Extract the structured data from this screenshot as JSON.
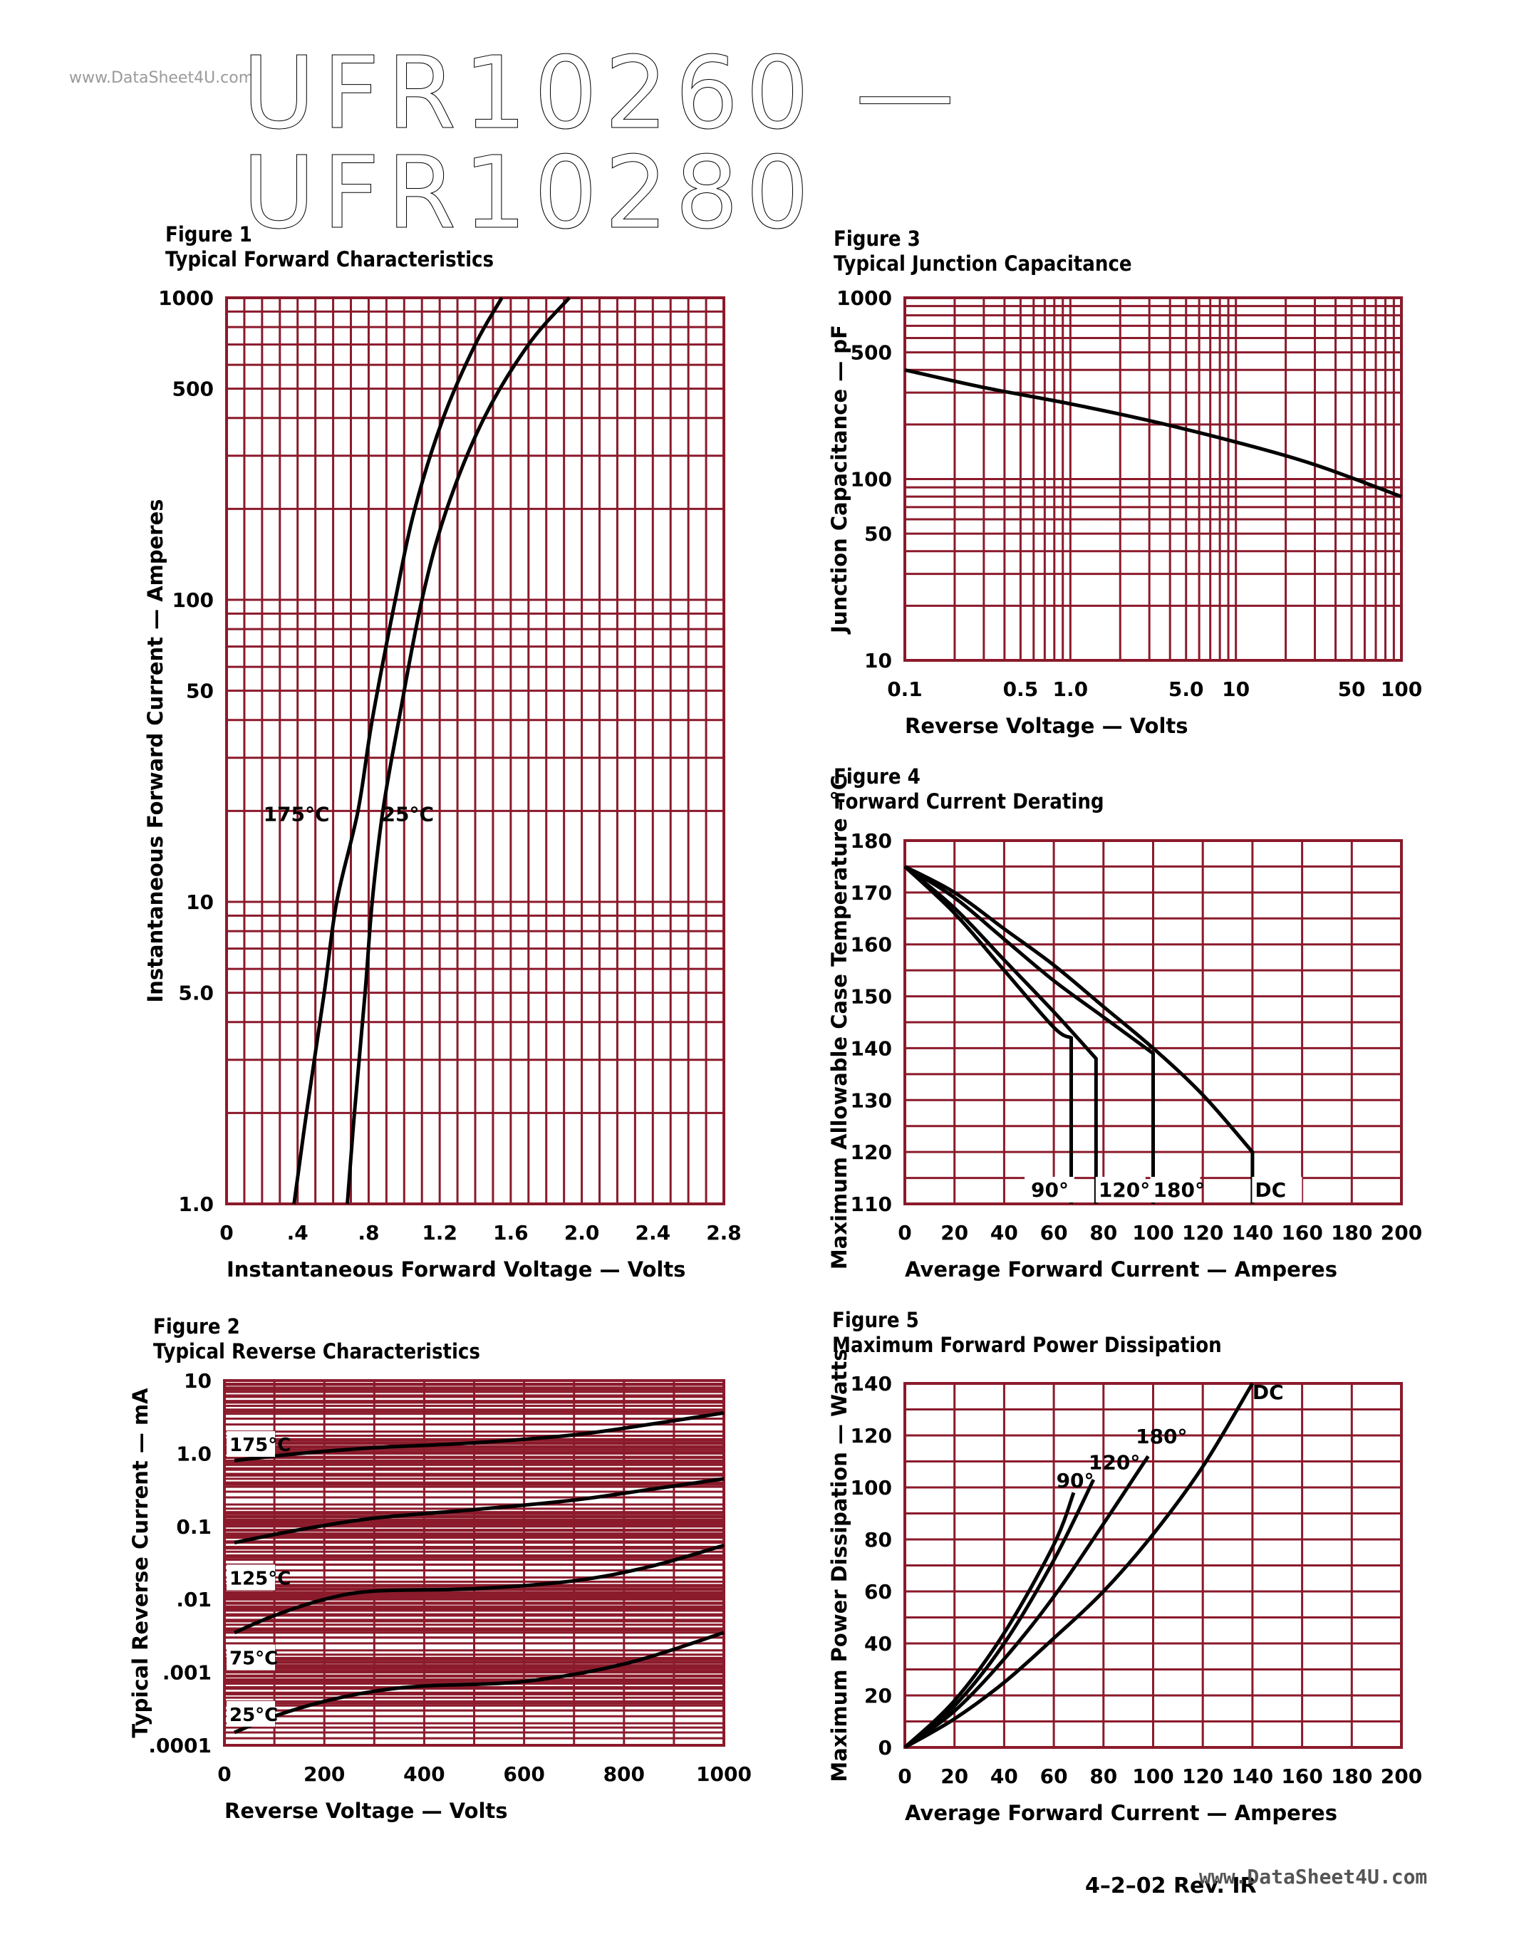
{
  "header": {
    "watermark": "www.DataSheet4U.com",
    "title": "UFR10260 — UFR10280"
  },
  "footer": {
    "date_rev": "4–2–02   Rev. IR",
    "watermark": "www.DataSheet4U.com"
  },
  "colors": {
    "grid": "#8b1a2b",
    "curve": "#000000"
  },
  "chart_data": [
    {
      "id": "fig1",
      "figure_label": "Figure 1",
      "title": "Typical Forward Characteristics",
      "type": "line",
      "xlabel": "Instantaneous Forward Voltage — Volts",
      "ylabel": "Instantaneous Forward Current — Amperes",
      "xlim": [
        0,
        2.8
      ],
      "ylim": [
        1,
        1000
      ],
      "yscale": "log",
      "x_ticks": [
        0,
        0.4,
        0.8,
        1.2,
        1.6,
        2.0,
        2.4,
        2.8
      ],
      "x_tick_labels": [
        "0",
        ".4",
        ".8",
        "1.2",
        "1.6",
        "2.0",
        "2.4",
        "2.8"
      ],
      "y_ticks": [
        1,
        5,
        10,
        50,
        100,
        500,
        1000
      ],
      "y_tick_labels": [
        "1.0",
        "5.0",
        "10",
        "50",
        "100",
        "500",
        "1000"
      ],
      "grid": true,
      "series": [
        {
          "name": "175°C",
          "points": [
            [
              0.38,
              1
            ],
            [
              0.45,
              2
            ],
            [
              0.55,
              5
            ],
            [
              0.62,
              10
            ],
            [
              0.74,
              20
            ],
            [
              0.82,
              40
            ],
            [
              0.95,
              100
            ],
            [
              1.06,
              200
            ],
            [
              1.22,
              400
            ],
            [
              1.4,
              700
            ],
            [
              1.55,
              1000
            ]
          ]
        },
        {
          "name": "25°C",
          "points": [
            [
              0.68,
              1
            ],
            [
              0.72,
              2
            ],
            [
              0.78,
              5
            ],
            [
              0.82,
              10
            ],
            [
              0.88,
              20
            ],
            [
              0.97,
              40
            ],
            [
              1.1,
              100
            ],
            [
              1.24,
              200
            ],
            [
              1.45,
              400
            ],
            [
              1.7,
              700
            ],
            [
              1.93,
              1000
            ]
          ]
        }
      ]
    },
    {
      "id": "fig2",
      "figure_label": "Figure 2",
      "title": "Typical Reverse Characteristics",
      "type": "line",
      "xlabel": "Reverse Voltage — Volts",
      "ylabel": "Typical Reverse Current — mA",
      "xlim": [
        0,
        1000
      ],
      "ylim": [
        0.0001,
        10
      ],
      "yscale": "log",
      "x_ticks": [
        0,
        200,
        400,
        600,
        800,
        1000
      ],
      "x_tick_labels": [
        "0",
        "200",
        "400",
        "600",
        "800",
        "1000"
      ],
      "y_ticks": [
        0.0001,
        0.001,
        0.01,
        0.1,
        1,
        10
      ],
      "y_tick_labels": [
        ".0001",
        ".001",
        ".01",
        "0.1",
        "1.0",
        "10"
      ],
      "grid": true,
      "series": [
        {
          "name": "175°C",
          "points": [
            [
              20,
              0.8
            ],
            [
              150,
              1.0
            ],
            [
              300,
              1.2
            ],
            [
              500,
              1.4
            ],
            [
              700,
              1.8
            ],
            [
              850,
              2.5
            ],
            [
              1000,
              3.6
            ]
          ]
        },
        {
          "name": "125°C",
          "points": [
            [
              20,
              0.06
            ],
            [
              150,
              0.09
            ],
            [
              300,
              0.13
            ],
            [
              500,
              0.17
            ],
            [
              700,
              0.23
            ],
            [
              850,
              0.32
            ],
            [
              1000,
              0.45
            ]
          ]
        },
        {
          "name": "75°C",
          "points": [
            [
              20,
              0.0035
            ],
            [
              100,
              0.006
            ],
            [
              200,
              0.01
            ],
            [
              300,
              0.013
            ],
            [
              500,
              0.014
            ],
            [
              700,
              0.018
            ],
            [
              850,
              0.028
            ],
            [
              1000,
              0.055
            ]
          ]
        },
        {
          "name": "25°C",
          "points": [
            [
              20,
              0.00015
            ],
            [
              100,
              0.00025
            ],
            [
              200,
              0.0004
            ],
            [
              300,
              0.00055
            ],
            [
              400,
              0.00065
            ],
            [
              600,
              0.00075
            ],
            [
              800,
              0.0013
            ],
            [
              1000,
              0.0035
            ]
          ]
        }
      ],
      "annotations": [
        "175°C",
        "125°C",
        "75°C",
        "25°C"
      ]
    },
    {
      "id": "fig3",
      "figure_label": "Figure 3",
      "title": "Typical Junction Capacitance",
      "type": "line",
      "xlabel": "Reverse Voltage — Volts",
      "ylabel": "Junction Capacitance — pF",
      "xlim": [
        0.1,
        100
      ],
      "ylim": [
        10,
        1000
      ],
      "xscale": "log",
      "yscale": "log",
      "x_ticks": [
        0.1,
        0.5,
        1,
        5,
        10,
        50,
        100
      ],
      "x_tick_labels": [
        "0.1",
        "0.5",
        "1.0",
        "5.0",
        "10",
        "50",
        "100"
      ],
      "y_ticks": [
        10,
        50,
        100,
        500,
        1000
      ],
      "y_tick_labels": [
        "10",
        "50",
        "100",
        "500",
        "1000"
      ],
      "grid": true,
      "series": [
        {
          "name": "",
          "points": [
            [
              0.1,
              400
            ],
            [
              0.3,
              320
            ],
            [
              1,
              260
            ],
            [
              3,
              210
            ],
            [
              10,
              160
            ],
            [
              30,
              120
            ],
            [
              100,
              80
            ]
          ]
        }
      ]
    },
    {
      "id": "fig4",
      "figure_label": "Figure 4",
      "title": "Forward Current Derating",
      "type": "line",
      "xlabel": "Average Forward Current — Amperes",
      "ylabel": "Maximum Allowable Case Temperature –°C",
      "xlim": [
        0,
        200
      ],
      "ylim": [
        110,
        180
      ],
      "x_ticks": [
        0,
        20,
        40,
        60,
        80,
        100,
        120,
        140,
        160,
        180,
        200
      ],
      "x_tick_labels": [
        "0",
        "20",
        "40",
        "60",
        "80",
        "100",
        "120",
        "140",
        "160",
        "180",
        "200"
      ],
      "y_ticks": [
        110,
        120,
        130,
        140,
        150,
        160,
        170,
        180
      ],
      "y_tick_labels": [
        "110",
        "120",
        "130",
        "140",
        "150",
        "160",
        "170",
        "180"
      ],
      "grid": true,
      "series": [
        {
          "name": "90°",
          "points": [
            [
              0,
              175
            ],
            [
              20,
              166
            ],
            [
              40,
              155
            ],
            [
              60,
              144
            ],
            [
              67,
              142
            ],
            [
              67,
              110
            ]
          ]
        },
        {
          "name": "120°",
          "points": [
            [
              0,
              175
            ],
            [
              20,
              167
            ],
            [
              40,
              157
            ],
            [
              60,
              147
            ],
            [
              77,
              138
            ],
            [
              77,
              110
            ]
          ]
        },
        {
          "name": "180°",
          "points": [
            [
              0,
              175
            ],
            [
              20,
              169
            ],
            [
              40,
              161
            ],
            [
              60,
              153
            ],
            [
              80,
              146
            ],
            [
              100,
              139
            ],
            [
              100,
              110
            ]
          ]
        },
        {
          "name": "DC",
          "points": [
            [
              0,
              175
            ],
            [
              20,
              170
            ],
            [
              40,
              163
            ],
            [
              60,
              156
            ],
            [
              80,
              148
            ],
            [
              100,
              140
            ],
            [
              120,
              131
            ],
            [
              140,
              120
            ],
            [
              140,
              110
            ]
          ]
        }
      ],
      "annotations": [
        "90°",
        "120°",
        "180°",
        "DC"
      ]
    },
    {
      "id": "fig5",
      "figure_label": "Figure 5",
      "title": "Maximum Forward Power Dissipation",
      "type": "line",
      "xlabel": "Average Forward Current — Amperes",
      "ylabel": "Maximum Power Dissipation — Watts",
      "xlim": [
        0,
        200
      ],
      "ylim": [
        0,
        140
      ],
      "x_ticks": [
        0,
        20,
        40,
        60,
        80,
        100,
        120,
        140,
        160,
        180,
        200
      ],
      "x_tick_labels": [
        "0",
        "20",
        "40",
        "60",
        "80",
        "100",
        "120",
        "140",
        "160",
        "180",
        "200"
      ],
      "y_ticks": [
        0,
        20,
        40,
        60,
        80,
        100,
        120,
        140
      ],
      "y_tick_labels": [
        "0",
        "20",
        "40",
        "60",
        "80",
        "100",
        "120",
        "140"
      ],
      "grid": true,
      "series": [
        {
          "name": "90°",
          "points": [
            [
              0,
              0
            ],
            [
              20,
              18
            ],
            [
              40,
              44
            ],
            [
              60,
              78
            ],
            [
              68,
              98
            ]
          ]
        },
        {
          "name": "120°",
          "points": [
            [
              0,
              0
            ],
            [
              20,
              16
            ],
            [
              40,
              40
            ],
            [
              60,
              72
            ],
            [
              76,
              103
            ]
          ]
        },
        {
          "name": "180°",
          "points": [
            [
              0,
              0
            ],
            [
              20,
              14
            ],
            [
              40,
              34
            ],
            [
              60,
              58
            ],
            [
              80,
              86
            ],
            [
              98,
              112
            ]
          ]
        },
        {
          "name": "DC",
          "points": [
            [
              0,
              0
            ],
            [
              20,
              11
            ],
            [
              40,
              25
            ],
            [
              60,
              42
            ],
            [
              80,
              60
            ],
            [
              100,
              82
            ],
            [
              120,
              108
            ],
            [
              140,
              140
            ]
          ]
        }
      ],
      "annotations": [
        "90°",
        "120°",
        "180°",
        "DC"
      ]
    }
  ]
}
